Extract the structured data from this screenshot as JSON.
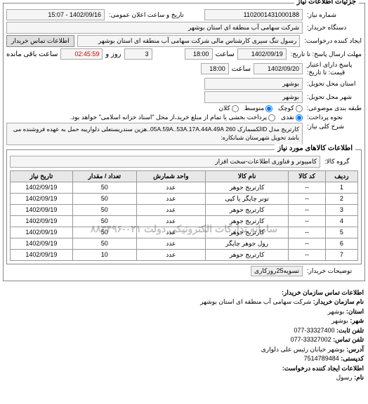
{
  "sections": {
    "need_info": "جزئیات اطلاعات نیاز"
  },
  "fields": {
    "req_no_label": "شماره نیاز:",
    "req_no": "1102001431000188",
    "announce_label": "تاریخ و ساعت اعلان عمومی:",
    "announce": "1402/09/16 - 15:07",
    "buyer_org_label": "دستگاه خریدار:",
    "buyer_org": "شرکت سهامی آب منطقه ای استان بوشهر",
    "creator_label": "ایجاد کننده درخواست:",
    "creator": "رسول تنگ سیری کارشناس مالی شرکت سهامی آب منطقه ای استان بوشهر",
    "contact_btn": "اطلاعات تماس خریدار",
    "deadline_send_label": "مهلت ارسال پاسخ: تا تاریخ:",
    "deadline_date": "1402/09/19",
    "hour_label": "ساعت",
    "deadline_hour": "18:00",
    "days_remain_prefix": "",
    "days_remain": "3",
    "days_remain_label": "روز و",
    "time_remain": "02:45:59",
    "time_remain_label": "ساعت باقی مانده",
    "valid_until_label": "پاسخ دارای اعتبار",
    "valid_until_sub": "قیمت: تا تاریخ:",
    "valid_date": "1402/09/20",
    "valid_hour": "18:00",
    "deliver_province_label": "استان محل تحویل:",
    "deliver_province": "بوشهر",
    "deliver_city_label": "شهر محل تحویل:",
    "deliver_city": "بوشهر",
    "pack_label": "طبقه بندی موضوعی:",
    "pack_small": "کوچک",
    "pack_med": "متوسط",
    "pack_large": "کلان",
    "pay_label": "نحوه پرداخت:",
    "pay_cash": "نقدی",
    "pay_credit": "پرداخت بخشی یا تمام از مبلغ خرید،از محل \"اسناد خزانه اسلامی\" خواهد بود.",
    "desc_label": "شرح کلی نیاز:",
    "desc": "کارتریج مدل IDلکسمارک 260 05A.59A..53A.17A.44A.49A..هزین سندریستعلی دلواریبه حمل به عهده فروشنده می باشد تحویل شهرستان شبانکاره:",
    "goods_label": "گروه کالا:",
    "goods": "کامپیوتر و فناوری اطلاعات-سخت افزار"
  },
  "catalog_header": "اطلاعات کالاهای مورد نیاز",
  "table": {
    "cols": [
      "ردیف",
      "کد کالا",
      "نام کالا",
      "واحد شمارش",
      "تعداد / مقدار",
      "تاریخ نیاز"
    ],
    "rows": [
      [
        "1",
        "--",
        "کارتریج جوهر",
        "عدد",
        "50",
        "1402/09/19"
      ],
      [
        "2",
        "--",
        "تونر چاپگر یا کپی",
        "عدد",
        "50",
        "1402/09/19"
      ],
      [
        "3",
        "--",
        "کارتریج جوهر",
        "عدد",
        "50",
        "1402/09/19"
      ],
      [
        "4",
        "--",
        "کارتریج جوهر",
        "عدد",
        "50",
        "1402/09/19"
      ],
      [
        "5",
        "--",
        "کارتریج جوهر",
        "عدد",
        "50",
        "1402/09/19"
      ],
      [
        "6",
        "--",
        "رول جوهر چاپگر",
        "عدد",
        "50",
        "1402/09/19"
      ],
      [
        "7",
        "--",
        "کارتریج جوهر",
        "عدد",
        "10",
        "1402/09/19"
      ]
    ],
    "watermark": "سامانه تدارکات الکترونیکی دولت ۰۲۱-۸۸۳۴۹۶"
  },
  "buyer_notes_label": "توضیحات خریدار:",
  "buyer_notes_tag": "تسویه25روزکاری",
  "footer": {
    "h1": "اطلاعات تماس سازمان خریدار:",
    "org_label": "نام سازمان خریدار:",
    "org": "شرکت سهامی آب منطقه ای استان بوشهر",
    "prov_label": "استان:",
    "prov": "بوشهر",
    "city_label": "شهر:",
    "city": "بوشهر",
    "tel_label": "تلفن ثابت:",
    "tel": "33327400-077",
    "fax_label": "تلفن تماس:",
    "fax": "33327002-077",
    "addr_label": "آدرس:",
    "addr": "بوشهر خیابان رئیس علی دلواری",
    "post_label": "کدپستی:",
    "post": "7514789484",
    "h2": "اطلاعات ایجاد کننده درخواست:",
    "name_label": "نام:",
    "name": "رسول"
  }
}
